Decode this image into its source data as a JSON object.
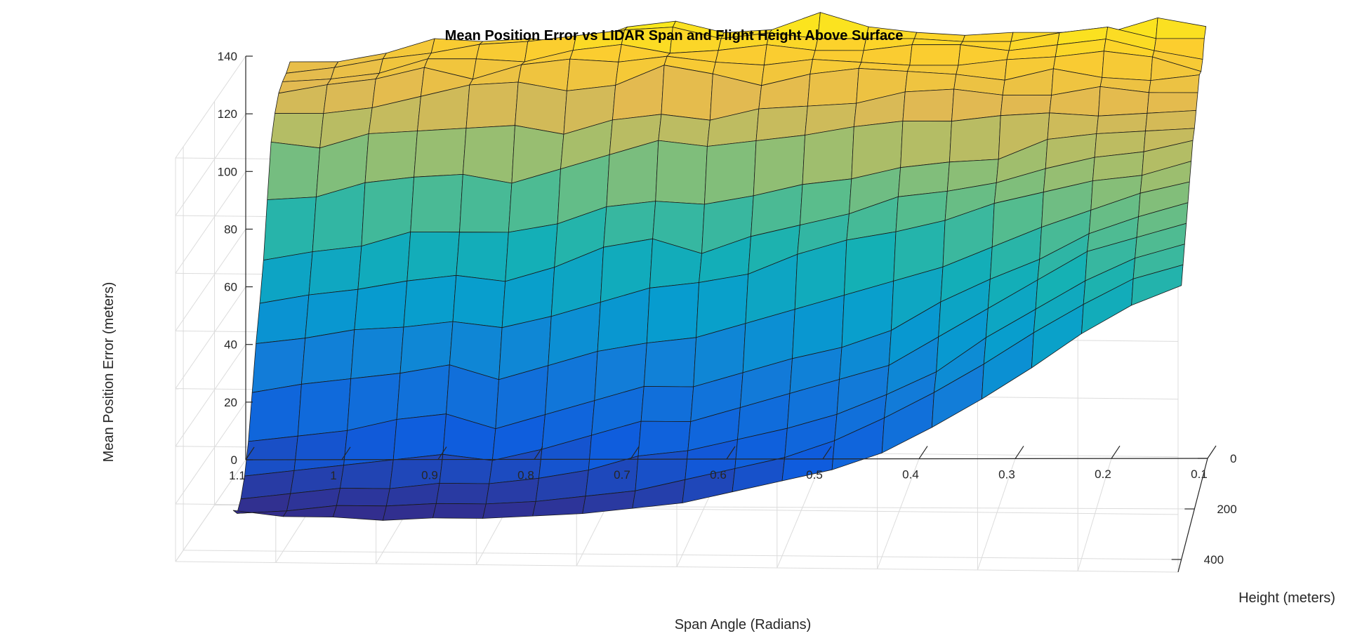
{
  "chart_data": {
    "type": "surface",
    "title": "Mean Position Error vs LIDAR Span and Flight Height Above Surface",
    "xlabel": "Span Angle (Radians)",
    "ylabel": "Height (meters)",
    "zlabel": "Mean Position Error (meters)",
    "x_ticks": [
      "1.1",
      "1",
      "0.9",
      "0.8",
      "0.7",
      "0.6",
      "0.5",
      "0.4",
      "0.3",
      "0.2",
      "0.1"
    ],
    "y_ticks": [
      "0",
      "200",
      "400"
    ],
    "z_ticks": [
      "0",
      "20",
      "40",
      "60",
      "80",
      "100",
      "120",
      "140"
    ],
    "xlim": [
      0.1,
      1.1
    ],
    "ylim": [
      0,
      450
    ],
    "zlim": [
      0,
      140
    ],
    "x_reversed": true,
    "grid": true,
    "colormap": "parula",
    "span_values": [
      1.05,
      1.0,
      0.95,
      0.9,
      0.85,
      0.8,
      0.75,
      0.7,
      0.65,
      0.6,
      0.55,
      0.5,
      0.45,
      0.4,
      0.35,
      0.3,
      0.25,
      0.2,
      0.15,
      0.1
    ],
    "height_values": [
      25,
      50,
      75,
      100,
      125,
      150,
      175,
      200,
      225,
      250,
      275,
      300,
      325,
      350,
      375,
      400
    ],
    "error_values": [
      [
        140,
        140,
        143,
        148,
        147,
        148,
        146,
        152,
        154,
        150,
        151,
        157,
        152,
        150,
        149,
        150,
        150,
        150,
        155,
        152
      ],
      [
        138,
        140,
        143,
        145,
        148,
        149,
        151,
        153,
        154,
        150,
        152,
        150,
        150,
        150,
        149,
        149,
        152,
        154,
        150,
        150
      ],
      [
        137,
        138,
        140,
        145,
        145,
        144,
        148,
        150,
        147,
        148,
        150,
        148,
        148,
        150,
        150,
        148,
        150,
        152,
        148,
        145
      ],
      [
        135,
        138,
        140,
        144,
        140,
        145,
        147,
        146,
        148,
        146,
        145,
        147,
        146,
        145,
        145,
        147,
        148,
        150,
        148,
        143
      ],
      [
        130,
        130,
        132,
        136,
        140,
        141,
        138,
        140,
        147,
        144,
        140,
        144,
        146,
        145,
        144,
        142,
        146,
        143,
        142,
        144
      ],
      [
        122,
        120,
        125,
        126,
        127,
        128,
        125,
        130,
        132,
        130,
        134,
        135,
        136,
        140,
        141,
        139,
        139,
        142,
        140,
        140
      ],
      [
        104,
        105,
        110,
        112,
        113,
        110,
        115,
        120,
        125,
        123,
        125,
        127,
        130,
        132,
        132,
        134,
        135,
        134,
        135,
        136
      ],
      [
        85,
        88,
        90,
        95,
        95,
        95,
        98,
        104,
        106,
        105,
        108,
        112,
        114,
        118,
        120,
        121,
        128,
        130,
        131,
        132
      ],
      [
        72,
        75,
        77,
        80,
        82,
        80,
        85,
        92,
        95,
        90,
        96,
        100,
        104,
        110,
        112,
        115,
        120,
        124,
        126,
        130
      ],
      [
        60,
        62,
        65,
        66,
        68,
        66,
        70,
        75,
        80,
        82,
        85,
        92,
        97,
        100,
        104,
        110,
        114,
        118,
        120,
        125
      ],
      [
        45,
        48,
        50,
        52,
        55,
        50,
        55,
        60,
        63,
        65,
        70,
        75,
        80,
        85,
        90,
        97,
        104,
        110,
        116,
        120
      ],
      [
        30,
        32,
        34,
        38,
        40,
        35,
        40,
        45,
        50,
        50,
        55,
        60,
        64,
        70,
        80,
        88,
        95,
        104,
        110,
        115
      ],
      [
        20,
        22,
        24,
        26,
        28,
        26,
        30,
        35,
        40,
        40,
        45,
        50,
        55,
        60,
        70,
        80,
        90,
        100,
        105,
        110
      ],
      [
        14,
        16,
        18,
        18,
        20,
        20,
        22,
        25,
        30,
        32,
        36,
        40,
        45,
        52,
        60,
        72,
        82,
        92,
        100,
        105
      ],
      [
        11,
        12,
        14,
        14,
        15,
        15,
        16,
        18,
        20,
        24,
        28,
        32,
        38,
        46,
        55,
        65,
        76,
        86,
        95,
        100
      ],
      [
        14,
        12,
        12,
        11,
        12,
        12,
        13,
        14,
        16,
        18,
        22,
        26,
        30,
        36,
        45,
        55,
        66,
        78,
        88,
        95
      ]
    ]
  }
}
